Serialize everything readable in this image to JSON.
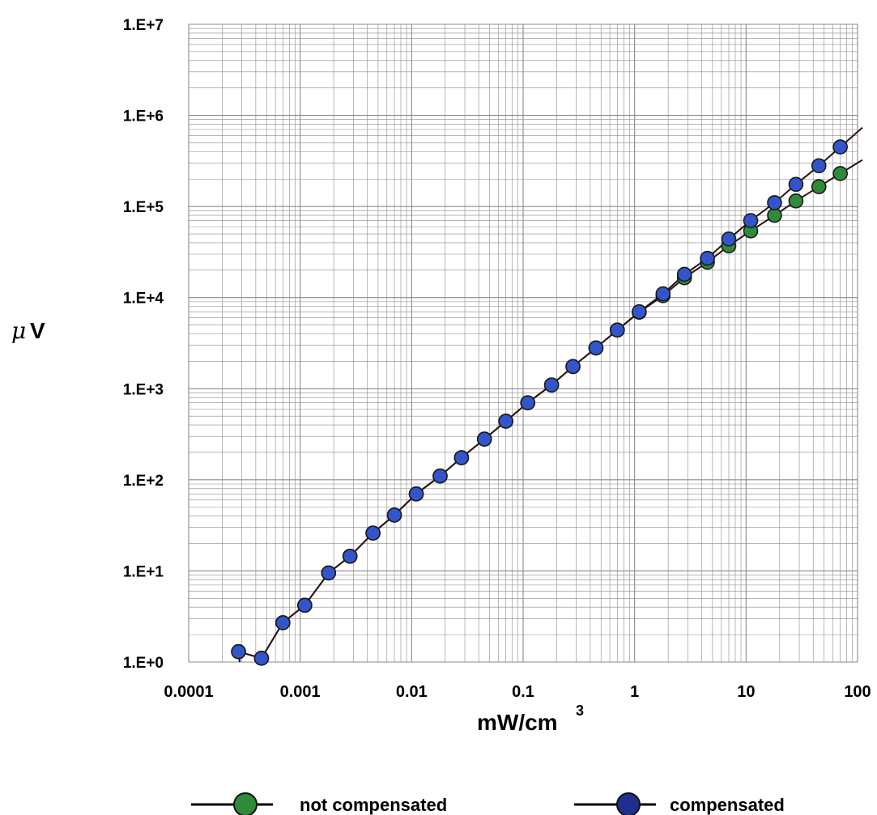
{
  "chart_data": {
    "type": "line",
    "xscale": "log",
    "yscale": "log",
    "xlabel": "mW/cm",
    "xlabel_superscript": "3",
    "ylabel_symbol": "μ",
    "ylabel_unit": "V",
    "xlim": [
      0.0001,
      100
    ],
    "ylim": [
      1,
      10000000
    ],
    "grid": true,
    "legend": "bottom",
    "x_tick_labels": [
      "0.0001",
      "0.001",
      "0.01",
      "0.1",
      "1",
      "10",
      "100"
    ],
    "x_tick_values": [
      0.0001,
      0.001,
      0.01,
      0.1,
      1,
      10,
      100
    ],
    "y_tick_labels": [
      "1.E+0",
      "1.E+1",
      "1.E+2",
      "1.E+3",
      "1.E+4",
      "1.E+5",
      "1.E+6",
      "1.E+7"
    ],
    "y_tick_values": [
      1,
      10,
      100,
      1000,
      10000,
      100000,
      1000000,
      10000000
    ],
    "series": [
      {
        "name": "not compensated",
        "color": "#2e8b3a",
        "x": [
          0.00028,
          0.00045,
          0.0007,
          0.0011,
          0.0018,
          0.0028,
          0.0045,
          0.007,
          0.011,
          0.018,
          0.028,
          0.045,
          0.07,
          0.11,
          0.18,
          0.28,
          0.45,
          0.7,
          1.1,
          1.8,
          2.8,
          4.5,
          7,
          11,
          18,
          28,
          45,
          70
        ],
        "y": [
          1.3,
          1.1,
          2.7,
          4.2,
          9.5,
          14.5,
          26,
          41,
          70,
          110,
          175,
          280,
          440,
          700,
          1100,
          1750,
          2800,
          4400,
          6900,
          10500,
          16500,
          24500,
          37000,
          54000,
          80000,
          115000,
          165000,
          230000
        ]
      },
      {
        "name": "compensated",
        "color": "#3355cc",
        "x": [
          0.00028,
          0.00045,
          0.0007,
          0.0011,
          0.0018,
          0.0028,
          0.0045,
          0.007,
          0.011,
          0.018,
          0.028,
          0.045,
          0.07,
          0.11,
          0.18,
          0.28,
          0.45,
          0.7,
          1.1,
          1.8,
          2.8,
          4.5,
          7,
          11,
          18,
          28,
          45,
          70
        ],
        "y": [
          1.3,
          1.1,
          2.7,
          4.2,
          9.5,
          14.5,
          26,
          41,
          70,
          110,
          175,
          280,
          440,
          700,
          1100,
          1750,
          2800,
          4400,
          7000,
          11000,
          18000,
          27000,
          44000,
          70000,
          110000,
          175000,
          280000,
          450000
        ]
      }
    ]
  },
  "legend": {
    "items": [
      {
        "label": "not compensated",
        "color": "#2e8b3a"
      },
      {
        "label": "compensated",
        "color": "#1f2f8f"
      }
    ]
  },
  "colors": {
    "line": "#2a1512",
    "grid": "#8a8a8a",
    "marker_stroke": "#1a1a1a"
  }
}
